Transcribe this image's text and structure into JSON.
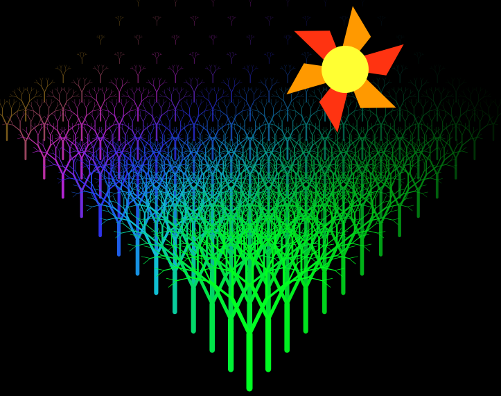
{
  "scene": {
    "background": "#000000",
    "sun": {
      "core_color": "#ffff33",
      "ray_colors": [
        "#ff9900",
        "#ff3311"
      ],
      "ray_count": 6
    },
    "forest": {
      "rows": 14,
      "columns": 14,
      "color_gradient": [
        "#7a5a1a",
        "#cc22cc",
        "#2233ee",
        "#11bbdd",
        "#00dd55",
        "#00ff22"
      ],
      "far_edge_fades_to": "#000000"
    }
  }
}
